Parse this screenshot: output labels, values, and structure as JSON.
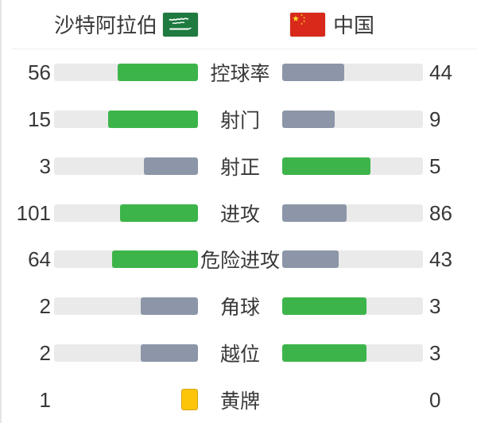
{
  "teams": {
    "home": {
      "name": "沙特阿拉伯",
      "flag_icon": "saudi-arabia-flag"
    },
    "away": {
      "name": "中国",
      "flag_icon": "china-flag"
    }
  },
  "colors": {
    "leading_bar": "#3db44a",
    "trailing_bar": "#8c96a8",
    "bar_track": "#eaeaea",
    "yellow_card": "#fdc50a",
    "text": "#383838"
  },
  "stats": [
    {
      "label": "控球率",
      "home": "56",
      "away": "44",
      "home_pct": 56,
      "away_pct": 44,
      "home_color": "green",
      "away_color": "gray"
    },
    {
      "label": "射门",
      "home": "15",
      "away": "9",
      "home_pct": 62.5,
      "away_pct": 37.5,
      "home_color": "green",
      "away_color": "gray"
    },
    {
      "label": "射正",
      "home": "3",
      "away": "5",
      "home_pct": 37.5,
      "away_pct": 62.5,
      "home_color": "gray",
      "away_color": "green"
    },
    {
      "label": "进攻",
      "home": "101",
      "away": "86",
      "home_pct": 54,
      "away_pct": 46,
      "home_color": "green",
      "away_color": "gray"
    },
    {
      "label": "危险进攻",
      "home": "64",
      "away": "43",
      "home_pct": 59.8,
      "away_pct": 40.2,
      "home_color": "green",
      "away_color": "gray"
    },
    {
      "label": "角球",
      "home": "2",
      "away": "3",
      "home_pct": 40,
      "away_pct": 60,
      "home_color": "gray",
      "away_color": "green"
    },
    {
      "label": "越位",
      "home": "2",
      "away": "3",
      "home_pct": 40,
      "away_pct": 60,
      "home_color": "gray",
      "away_color": "green"
    },
    {
      "label": "黄牌",
      "home": "1",
      "away": "0"
    }
  ],
  "chart_data": {
    "type": "bar",
    "orientation": "horizontal-mirrored",
    "categories": [
      "控球率",
      "射门",
      "射正",
      "进攻",
      "危险进攻",
      "角球",
      "越位",
      "黄牌"
    ],
    "series": [
      {
        "name": "沙特阿拉伯",
        "values": [
          56,
          15,
          3,
          101,
          64,
          2,
          2,
          1
        ]
      },
      {
        "name": "中国",
        "values": [
          44,
          9,
          5,
          86,
          43,
          3,
          3,
          0
        ]
      }
    ],
    "legend_position": "top",
    "notes": "bar length = value / (home+away); leading side bar green, trailing side gray; yellow-card row shows card icon instead of bars"
  }
}
